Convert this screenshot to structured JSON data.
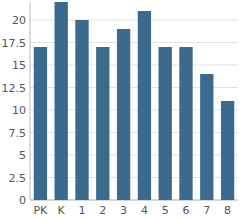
{
  "chart_data": {
    "type": "bar",
    "categories": [
      "PK",
      "K",
      "1",
      "2",
      "3",
      "4",
      "5",
      "6",
      "7",
      "8"
    ],
    "values": [
      17,
      22,
      20,
      17,
      19,
      21,
      17,
      17,
      14,
      11
    ],
    "color": "#3b6a8e",
    "ylim": [
      0,
      22
    ],
    "yticks": [
      0,
      2.5,
      5,
      7.5,
      10,
      12.5,
      15,
      17.5,
      20
    ],
    "grid": true
  }
}
